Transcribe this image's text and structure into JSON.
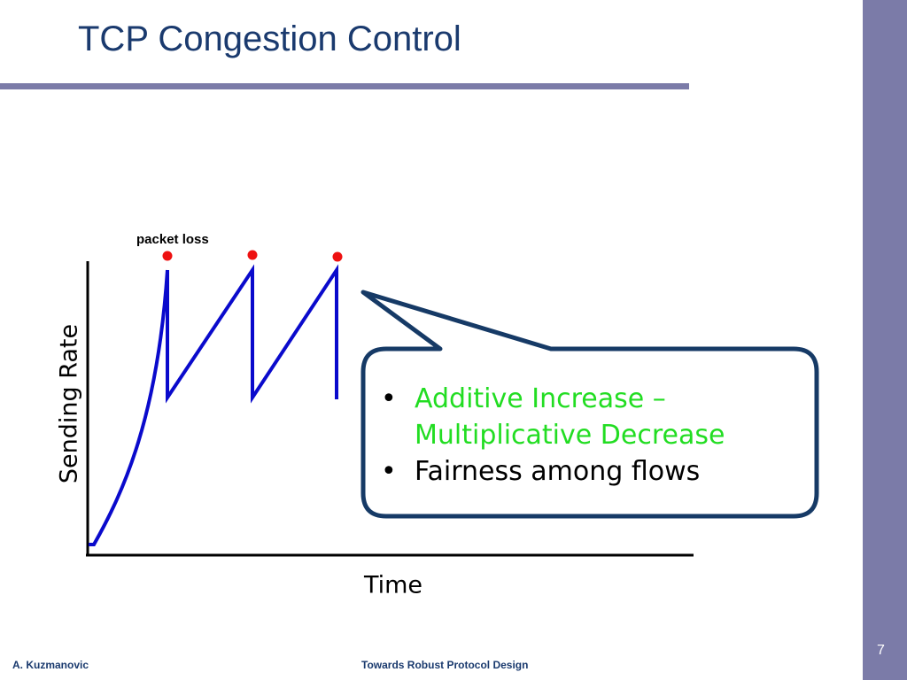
{
  "slide": {
    "title": "TCP Congestion Control",
    "page_number": "7"
  },
  "footer": {
    "author": "A. Kuzmanovic",
    "talk_title": "Towards Robust Protocol Design"
  },
  "diagram": {
    "annotation": "packet loss",
    "y_axis_label": "Sending Rate",
    "x_axis_label": "Time",
    "line_color": "#0a0acc",
    "loss_marker_color": "#ee1111",
    "loss_event_count": 3
  },
  "callout": {
    "border_color": "#163a66",
    "bullets": [
      {
        "text": "Additive Increase – Multiplicative Decrease",
        "color": "#22dd22"
      },
      {
        "text": "Fairness among flows",
        "color": "#000000"
      }
    ]
  },
  "colors": {
    "title": "#1a3a6e",
    "accent_band": "#7b7ba8"
  }
}
